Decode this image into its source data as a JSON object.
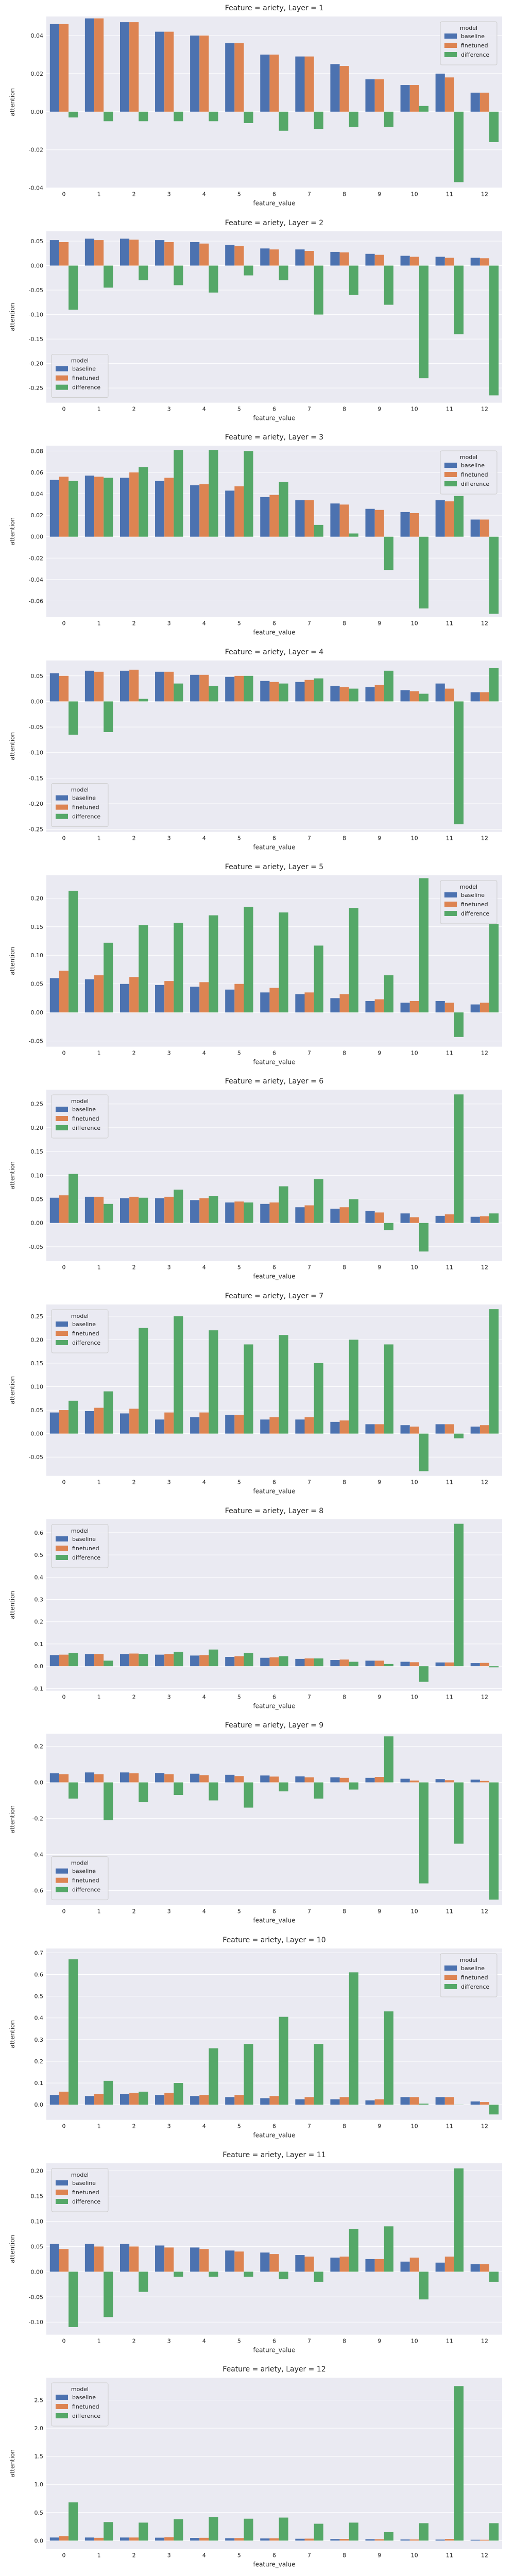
{
  "colors": {
    "baseline": "#4c72b0",
    "finetuned": "#dd8452",
    "difference": "#55a868",
    "panel_bg": "#eaeaf2",
    "grid": "#ffffff"
  },
  "chart_data": [
    {
      "type": "bar",
      "title": "Feature = ariety, Layer = 1",
      "xlabel": "feature_value",
      "ylabel": "attention",
      "categories": [
        "0",
        "1",
        "2",
        "3",
        "4",
        "5",
        "6",
        "7",
        "8",
        "9",
        "10",
        "11",
        "12"
      ],
      "legend_title": "model",
      "legend_position": "top-right",
      "ylim": [
        -0.04,
        0.05
      ],
      "yticks": [
        -0.04,
        -0.02,
        0.0,
        0.02,
        0.04
      ],
      "series": [
        {
          "name": "baseline",
          "values": [
            0.046,
            0.049,
            0.047,
            0.042,
            0.04,
            0.036,
            0.03,
            0.029,
            0.025,
            0.017,
            0.014,
            0.02,
            0.01
          ]
        },
        {
          "name": "finetuned",
          "values": [
            0.046,
            0.049,
            0.047,
            0.042,
            0.04,
            0.036,
            0.03,
            0.029,
            0.024,
            0.017,
            0.014,
            0.018,
            0.01
          ]
        },
        {
          "name": "difference",
          "values": [
            -0.003,
            -0.005,
            -0.005,
            -0.005,
            -0.005,
            -0.006,
            -0.01,
            -0.009,
            -0.008,
            -0.008,
            0.003,
            -0.037,
            -0.016
          ]
        }
      ]
    },
    {
      "type": "bar",
      "title": "Feature = ariety, Layer = 2",
      "xlabel": "feature_value",
      "ylabel": "attention",
      "categories": [
        "0",
        "1",
        "2",
        "3",
        "4",
        "5",
        "6",
        "7",
        "8",
        "9",
        "10",
        "11",
        "12"
      ],
      "legend_title": "model",
      "legend_position": "bottom-left",
      "ylim": [
        -0.28,
        0.07
      ],
      "yticks": [
        -0.25,
        -0.2,
        -0.15,
        -0.1,
        -0.05,
        0.0,
        0.05
      ],
      "series": [
        {
          "name": "baseline",
          "values": [
            0.052,
            0.055,
            0.055,
            0.052,
            0.048,
            0.042,
            0.035,
            0.033,
            0.028,
            0.024,
            0.02,
            0.018,
            0.016
          ]
        },
        {
          "name": "finetuned",
          "values": [
            0.048,
            0.052,
            0.053,
            0.048,
            0.045,
            0.04,
            0.033,
            0.03,
            0.027,
            0.022,
            0.018,
            0.016,
            0.015
          ]
        },
        {
          "name": "difference",
          "values": [
            -0.09,
            -0.045,
            -0.03,
            -0.04,
            -0.055,
            -0.02,
            -0.03,
            -0.1,
            -0.06,
            -0.08,
            -0.23,
            -0.14,
            -0.265
          ]
        }
      ]
    },
    {
      "type": "bar",
      "title": "Feature = ariety, Layer = 3",
      "xlabel": "feature_value",
      "ylabel": "attention",
      "categories": [
        "0",
        "1",
        "2",
        "3",
        "4",
        "5",
        "6",
        "7",
        "8",
        "9",
        "10",
        "11",
        "12"
      ],
      "legend_title": "model",
      "legend_position": "top-right",
      "ylim": [
        -0.075,
        0.085
      ],
      "yticks": [
        -0.06,
        -0.04,
        -0.02,
        0.0,
        0.02,
        0.04,
        0.06,
        0.08
      ],
      "series": [
        {
          "name": "baseline",
          "values": [
            0.053,
            0.057,
            0.055,
            0.052,
            0.048,
            0.043,
            0.037,
            0.034,
            0.031,
            0.026,
            0.023,
            0.034,
            0.016
          ]
        },
        {
          "name": "finetuned",
          "values": [
            0.056,
            0.056,
            0.06,
            0.055,
            0.049,
            0.047,
            0.039,
            0.034,
            0.03,
            0.025,
            0.022,
            0.033,
            0.016
          ]
        },
        {
          "name": "difference",
          "values": [
            0.052,
            0.055,
            0.065,
            0.081,
            0.081,
            0.08,
            0.051,
            0.011,
            0.003,
            -0.031,
            -0.067,
            0.038,
            -0.072
          ]
        }
      ]
    },
    {
      "type": "bar",
      "title": "Feature = ariety, Layer = 4",
      "xlabel": "feature_value",
      "ylabel": "attention",
      "categories": [
        "0",
        "1",
        "2",
        "3",
        "4",
        "5",
        "6",
        "7",
        "8",
        "9",
        "10",
        "11",
        "12"
      ],
      "legend_title": "model",
      "legend_position": "bottom-left",
      "ylim": [
        -0.255,
        0.08
      ],
      "yticks": [
        -0.25,
        -0.2,
        -0.15,
        -0.1,
        -0.05,
        0.0,
        0.05
      ],
      "series": [
        {
          "name": "baseline",
          "values": [
            0.055,
            0.06,
            0.06,
            0.058,
            0.052,
            0.048,
            0.04,
            0.038,
            0.03,
            0.028,
            0.022,
            0.035,
            0.018
          ]
        },
        {
          "name": "finetuned",
          "values": [
            0.05,
            0.058,
            0.062,
            0.058,
            0.052,
            0.05,
            0.038,
            0.042,
            0.028,
            0.032,
            0.02,
            0.025,
            0.018
          ]
        },
        {
          "name": "difference",
          "values": [
            -0.065,
            -0.06,
            0.005,
            0.035,
            0.03,
            0.05,
            0.035,
            0.045,
            0.025,
            0.06,
            0.015,
            -0.24,
            0.065
          ]
        }
      ]
    },
    {
      "type": "bar",
      "title": "Feature = ariety, Layer = 5",
      "xlabel": "feature_value",
      "ylabel": "attention",
      "categories": [
        "0",
        "1",
        "2",
        "3",
        "4",
        "5",
        "6",
        "7",
        "8",
        "9",
        "10",
        "11",
        "12"
      ],
      "legend_title": "model",
      "legend_position": "top-right",
      "ylim": [
        -0.06,
        0.24
      ],
      "yticks": [
        -0.05,
        0.0,
        0.05,
        0.1,
        0.15,
        0.2
      ],
      "series": [
        {
          "name": "baseline",
          "values": [
            0.06,
            0.058,
            0.05,
            0.048,
            0.045,
            0.04,
            0.035,
            0.032,
            0.025,
            0.02,
            0.017,
            0.02,
            0.014
          ]
        },
        {
          "name": "finetuned",
          "values": [
            0.073,
            0.065,
            0.062,
            0.055,
            0.053,
            0.05,
            0.043,
            0.035,
            0.032,
            0.023,
            0.02,
            0.017,
            0.017
          ]
        },
        {
          "name": "difference",
          "values": [
            0.213,
            0.122,
            0.153,
            0.157,
            0.17,
            0.185,
            0.175,
            0.117,
            0.183,
            0.065,
            0.235,
            -0.043,
            0.155
          ]
        }
      ]
    },
    {
      "type": "bar",
      "title": "Feature = ariety, Layer = 6",
      "xlabel": "feature_value",
      "ylabel": "attention",
      "categories": [
        "0",
        "1",
        "2",
        "3",
        "4",
        "5",
        "6",
        "7",
        "8",
        "9",
        "10",
        "11",
        "12"
      ],
      "legend_title": "model",
      "legend_position": "top-left",
      "ylim": [
        -0.08,
        0.28
      ],
      "yticks": [
        -0.05,
        0.0,
        0.05,
        0.1,
        0.15,
        0.2,
        0.25
      ],
      "series": [
        {
          "name": "baseline",
          "values": [
            0.053,
            0.055,
            0.052,
            0.052,
            0.048,
            0.043,
            0.04,
            0.033,
            0.03,
            0.025,
            0.02,
            0.015,
            0.013
          ]
        },
        {
          "name": "finetuned",
          "values": [
            0.058,
            0.055,
            0.055,
            0.055,
            0.052,
            0.045,
            0.043,
            0.037,
            0.033,
            0.022,
            0.012,
            0.018,
            0.014
          ]
        },
        {
          "name": "difference",
          "values": [
            0.103,
            0.04,
            0.053,
            0.07,
            0.057,
            0.043,
            0.077,
            0.092,
            0.05,
            -0.015,
            -0.06,
            0.27,
            0.02
          ]
        }
      ]
    },
    {
      "type": "bar",
      "title": "Feature = ariety, Layer = 7",
      "xlabel": "feature_value",
      "ylabel": "attention",
      "categories": [
        "0",
        "1",
        "2",
        "3",
        "4",
        "5",
        "6",
        "7",
        "8",
        "9",
        "10",
        "11",
        "12"
      ],
      "legend_title": "model",
      "legend_position": "top-left",
      "ylim": [
        -0.09,
        0.275
      ],
      "yticks": [
        -0.05,
        0.0,
        0.05,
        0.1,
        0.15,
        0.2,
        0.25
      ],
      "series": [
        {
          "name": "baseline",
          "values": [
            0.045,
            0.048,
            0.043,
            0.03,
            0.035,
            0.04,
            0.03,
            0.03,
            0.025,
            0.02,
            0.018,
            0.02,
            0.015
          ]
        },
        {
          "name": "finetuned",
          "values": [
            0.05,
            0.055,
            0.053,
            0.045,
            0.045,
            0.04,
            0.035,
            0.035,
            0.028,
            0.02,
            0.015,
            0.02,
            0.018
          ]
        },
        {
          "name": "difference",
          "values": [
            0.07,
            0.09,
            0.225,
            0.25,
            0.22,
            0.19,
            0.21,
            0.15,
            0.2,
            0.19,
            -0.08,
            -0.01,
            0.265
          ]
        }
      ]
    },
    {
      "type": "bar",
      "title": "Feature = ariety, Layer = 8",
      "xlabel": "feature_value",
      "ylabel": "attention",
      "categories": [
        "0",
        "1",
        "2",
        "3",
        "4",
        "5",
        "6",
        "7",
        "8",
        "9",
        "10",
        "11",
        "12"
      ],
      "legend_title": "model",
      "legend_position": "top-left",
      "ylim": [
        -0.11,
        0.66
      ],
      "yticks": [
        -0.1,
        0.0,
        0.1,
        0.2,
        0.3,
        0.4,
        0.5,
        0.6
      ],
      "series": [
        {
          "name": "baseline",
          "values": [
            0.05,
            0.055,
            0.055,
            0.052,
            0.048,
            0.042,
            0.038,
            0.033,
            0.028,
            0.025,
            0.02,
            0.017,
            0.014
          ]
        },
        {
          "name": "finetuned",
          "values": [
            0.052,
            0.055,
            0.057,
            0.055,
            0.05,
            0.045,
            0.04,
            0.035,
            0.03,
            0.025,
            0.018,
            0.017,
            0.015
          ]
        },
        {
          "name": "difference",
          "values": [
            0.06,
            0.025,
            0.055,
            0.065,
            0.075,
            0.06,
            0.045,
            0.035,
            0.02,
            0.01,
            -0.07,
            0.64,
            -0.005
          ]
        }
      ]
    },
    {
      "type": "bar",
      "title": "Feature = ariety, Layer = 9",
      "xlabel": "feature_value",
      "ylabel": "attention",
      "categories": [
        "0",
        "1",
        "2",
        "3",
        "4",
        "5",
        "6",
        "7",
        "8",
        "9",
        "10",
        "11",
        "12"
      ],
      "legend_title": "model",
      "legend_position": "bottom-left",
      "ylim": [
        -0.68,
        0.27
      ],
      "yticks": [
        -0.6,
        -0.4,
        -0.2,
        0.0,
        0.2
      ],
      "series": [
        {
          "name": "baseline",
          "values": [
            0.05,
            0.055,
            0.055,
            0.052,
            0.048,
            0.042,
            0.038,
            0.033,
            0.028,
            0.025,
            0.02,
            0.018,
            0.015
          ]
        },
        {
          "name": "finetuned",
          "values": [
            0.045,
            0.045,
            0.05,
            0.045,
            0.04,
            0.035,
            0.032,
            0.028,
            0.025,
            0.03,
            0.01,
            0.012,
            0.008
          ]
        },
        {
          "name": "difference",
          "values": [
            -0.09,
            -0.21,
            -0.11,
            -0.07,
            -0.1,
            -0.14,
            -0.05,
            -0.09,
            -0.04,
            0.255,
            -0.56,
            -0.34,
            -0.65
          ]
        }
      ]
    },
    {
      "type": "bar",
      "title": "Feature = ariety, Layer = 10",
      "xlabel": "feature_value",
      "ylabel": "attention",
      "categories": [
        "0",
        "1",
        "2",
        "3",
        "4",
        "5",
        "6",
        "7",
        "8",
        "9",
        "10",
        "11",
        "12"
      ],
      "legend_title": "model",
      "legend_position": "top-right",
      "ylim": [
        -0.07,
        0.72
      ],
      "yticks": [
        0.0,
        0.1,
        0.2,
        0.3,
        0.4,
        0.5,
        0.6,
        0.7
      ],
      "series": [
        {
          "name": "baseline",
          "values": [
            0.045,
            0.04,
            0.05,
            0.045,
            0.04,
            0.035,
            0.03,
            0.025,
            0.025,
            0.02,
            0.035,
            0.035,
            0.015
          ]
        },
        {
          "name": "finetuned",
          "values": [
            0.06,
            0.05,
            0.055,
            0.055,
            0.045,
            0.045,
            0.04,
            0.035,
            0.035,
            0.025,
            0.035,
            0.035,
            0.012
          ]
        },
        {
          "name": "difference",
          "values": [
            0.67,
            0.11,
            0.06,
            0.1,
            0.26,
            0.28,
            0.405,
            0.28,
            0.61,
            0.43,
            0.005,
            0.0,
            -0.045
          ]
        }
      ]
    },
    {
      "type": "bar",
      "title": "Feature = ariety, Layer = 11",
      "xlabel": "feature_value",
      "ylabel": "attention",
      "categories": [
        "0",
        "1",
        "2",
        "3",
        "4",
        "5",
        "6",
        "7",
        "8",
        "9",
        "10",
        "11",
        "12"
      ],
      "legend_title": "model",
      "legend_position": "top-left",
      "ylim": [
        -0.125,
        0.215
      ],
      "yticks": [
        -0.1,
        -0.05,
        0.0,
        0.05,
        0.1,
        0.15,
        0.2
      ],
      "series": [
        {
          "name": "baseline",
          "values": [
            0.055,
            0.055,
            0.055,
            0.052,
            0.048,
            0.042,
            0.038,
            0.033,
            0.028,
            0.025,
            0.02,
            0.018,
            0.015
          ]
        },
        {
          "name": "finetuned",
          "values": [
            0.045,
            0.05,
            0.05,
            0.048,
            0.045,
            0.04,
            0.035,
            0.03,
            0.03,
            0.025,
            0.028,
            0.03,
            0.015
          ]
        },
        {
          "name": "difference",
          "values": [
            -0.11,
            -0.09,
            -0.04,
            -0.01,
            -0.01,
            -0.01,
            -0.015,
            -0.02,
            0.085,
            0.09,
            -0.055,
            0.205,
            -0.02
          ]
        }
      ]
    },
    {
      "type": "bar",
      "title": "Feature = ariety, Layer = 12",
      "xlabel": "feature_value",
      "ylabel": "attention",
      "categories": [
        "0",
        "1",
        "2",
        "3",
        "4",
        "5",
        "6",
        "7",
        "8",
        "9",
        "10",
        "11",
        "12"
      ],
      "legend_title": "model",
      "legend_position": "top-left",
      "ylim": [
        -0.15,
        2.9
      ],
      "yticks": [
        0.0,
        0.5,
        1.0,
        1.5,
        2.0,
        2.5
      ],
      "series": [
        {
          "name": "baseline",
          "values": [
            0.055,
            0.055,
            0.055,
            0.052,
            0.048,
            0.042,
            0.038,
            0.033,
            0.028,
            0.025,
            0.02,
            0.018,
            0.015
          ]
        },
        {
          "name": "finetuned",
          "values": [
            0.08,
            0.05,
            0.055,
            0.06,
            0.05,
            0.045,
            0.04,
            0.035,
            0.03,
            0.025,
            0.02,
            0.03,
            0.015
          ]
        },
        {
          "name": "difference",
          "values": [
            0.68,
            0.33,
            0.32,
            0.38,
            0.42,
            0.39,
            0.41,
            0.3,
            0.32,
            0.15,
            0.31,
            2.75,
            0.31
          ]
        }
      ]
    }
  ]
}
